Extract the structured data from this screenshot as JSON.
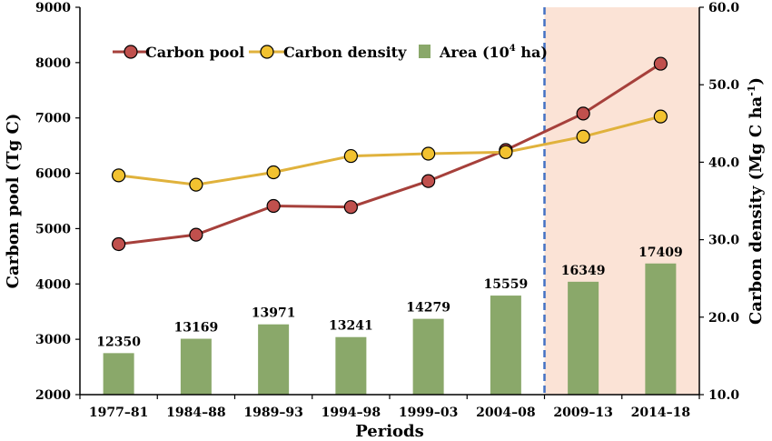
{
  "chart_data": {
    "type": "bar+line",
    "categories": [
      "1977–81",
      "1984–88",
      "1989–93",
      "1994–98",
      "1999–03",
      "2004–08",
      "2009–13",
      "2014–18"
    ],
    "xlabel": "Periods",
    "ylabel_left": "Carbon pool (Tg C)",
    "ylabel_right_main": "Carbon density (Mg C ha",
    "ylabel_right_sup": "-1",
    "ylabel_right_close": ")",
    "ylim_left": [
      2000,
      9000
    ],
    "yticks_left": [
      2000,
      3000,
      4000,
      5000,
      6000,
      7000,
      8000,
      9000
    ],
    "ylim_right": [
      10,
      60
    ],
    "yticks_right": [
      "10.0",
      "20.0",
      "30.0",
      "40.0",
      "50.0",
      "60.0"
    ],
    "highlight_region": {
      "from_category_index": 6,
      "to_category_index": 7,
      "color": "#FBE3D6",
      "divider_color": "#4472C4",
      "divider_style": "dashed"
    },
    "series": [
      {
        "name": "Area",
        "legend_main": "Area (10",
        "legend_sup": "4",
        "legend_tail": " ha)",
        "type": "bar",
        "axis": "left",
        "color": "#8AA86A",
        "values": [
          12350,
          13169,
          13971,
          13241,
          14279,
          15559,
          16349,
          17409
        ],
        "labels": [
          "12350",
          "13169",
          "13971",
          "13241",
          "14279",
          "15559",
          "16349",
          "17409"
        ],
        "display_left_axis_values": [
          2750,
          3010,
          3270,
          3040,
          3370,
          3790,
          4040,
          4370
        ]
      },
      {
        "name": "Carbon pool",
        "type": "line",
        "axis": "left",
        "color": "#A6403B",
        "marker_fill": "#C0504D",
        "values": [
          4720,
          4890,
          5410,
          5390,
          5860,
          6420,
          7080,
          7980
        ]
      },
      {
        "name": "Carbon density",
        "type": "line",
        "axis": "right",
        "color": "#E0B23C",
        "marker_fill": "#F2C230",
        "values": [
          38.3,
          37.1,
          38.7,
          40.8,
          41.1,
          41.3,
          43.3,
          45.9
        ]
      }
    ],
    "legend_position": "top-left",
    "grid": false
  }
}
